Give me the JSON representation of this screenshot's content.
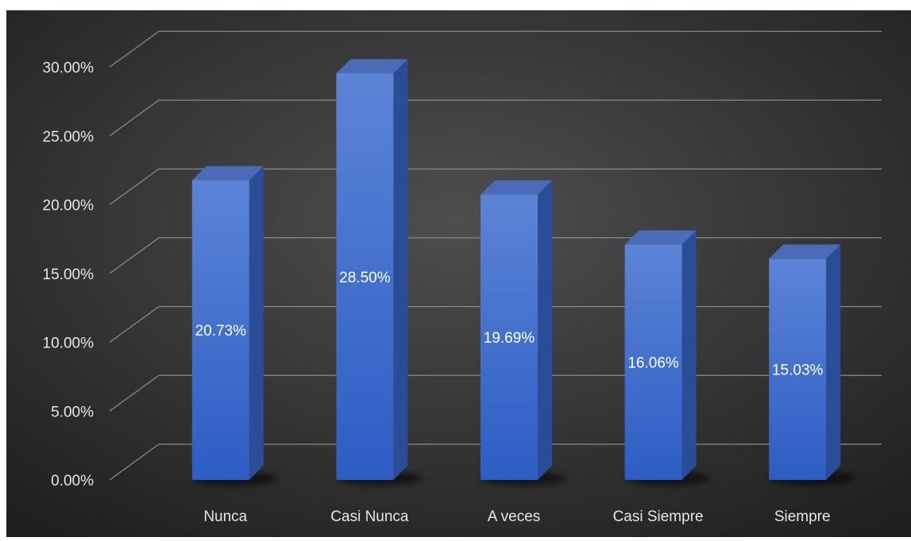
{
  "chart_data": {
    "type": "bar",
    "categories": [
      "Nunca",
      "Casi Nunca",
      "A veces",
      "Casi Siempre",
      "Siempre"
    ],
    "values": [
      20.73,
      28.5,
      19.69,
      16.06,
      15.03
    ],
    "value_labels": [
      "20.73%",
      "28.50%",
      "19.69%",
      "16.06%",
      "15.03%"
    ],
    "y_ticks": [
      0,
      5,
      10,
      15,
      20,
      25,
      30
    ],
    "y_tick_labels": [
      "0.00%",
      "5.00%",
      "10.00%",
      "15.00%",
      "20.00%",
      "25.00%",
      "30.00%"
    ],
    "ylim": [
      0,
      30
    ],
    "grid": true,
    "style": "3d-column",
    "colors": {
      "background_center": "#4e4e4e",
      "background_edge": "#1f1f1f",
      "bar_front_top": "#5b84d6",
      "bar_front_bottom": "#2d5dc4",
      "bar_side": "#2b4c96",
      "bar_top": "#4a6cb8",
      "grid": "#8a8a8a",
      "text": "#e6e6e6"
    }
  }
}
